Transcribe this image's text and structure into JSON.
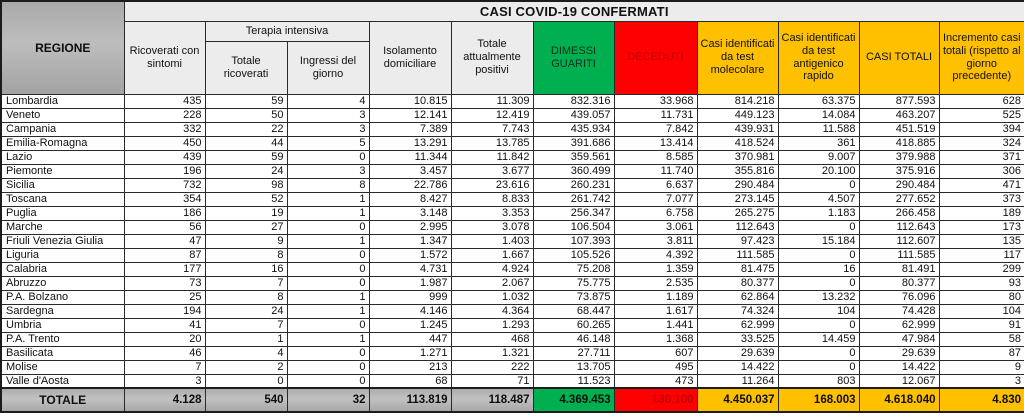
{
  "title": "CASI COVID-19 CONFERMATI",
  "colors": {
    "green": "#00b050",
    "red": "#ff0000",
    "amber": "#ffc000",
    "deceduti_text": "#c00000",
    "header_gray": "#b3b3b3"
  },
  "header": {
    "regione": "REGIONE",
    "ricoverati": "Ricoverati con sintomi",
    "terapia": "Terapia intensiva",
    "terapia_totale": "Totale ricoverati",
    "terapia_ingressi": "Ingressi del giorno",
    "isolamento": "Isolamento domiciliare",
    "positivi": "Totale attualmente positivi",
    "dimessi": "DIMESSI GUARITI",
    "deceduti": "DECEDUTI",
    "molecolare": "Casi identificati da test molecolare",
    "antigenico": "Casi identificati da test antigenico rapido",
    "casi_totali": "CASI TOTALI",
    "incremento": "Incremento casi totali (rispetto al giorno precedente)"
  },
  "rows": [
    [
      "Lombardia",
      "435",
      "59",
      "4",
      "10.815",
      "11.309",
      "832.316",
      "33.968",
      "814.218",
      "63.375",
      "877.593",
      "628"
    ],
    [
      "Veneto",
      "228",
      "50",
      "3",
      "12.141",
      "12.419",
      "439.057",
      "11.731",
      "449.123",
      "14.084",
      "463.207",
      "525"
    ],
    [
      "Campania",
      "332",
      "22",
      "3",
      "7.389",
      "7.743",
      "435.934",
      "7.842",
      "439.931",
      "11.588",
      "451.519",
      "394"
    ],
    [
      "Emilia-Romagna",
      "450",
      "44",
      "5",
      "13.291",
      "13.785",
      "391.686",
      "13.414",
      "418.524",
      "361",
      "418.885",
      "324"
    ],
    [
      "Lazio",
      "439",
      "59",
      "0",
      "11.344",
      "11.842",
      "359.561",
      "8.585",
      "370.981",
      "9.007",
      "379.988",
      "371"
    ],
    [
      "Piemonte",
      "196",
      "24",
      "3",
      "3.457",
      "3.677",
      "360.499",
      "11.740",
      "355.816",
      "20.100",
      "375.916",
      "306"
    ],
    [
      "Sicilia",
      "732",
      "98",
      "8",
      "22.786",
      "23.616",
      "260.231",
      "6.637",
      "290.484",
      "0",
      "290.484",
      "471"
    ],
    [
      "Toscana",
      "354",
      "52",
      "1",
      "8.427",
      "8.833",
      "261.742",
      "7.077",
      "273.145",
      "4.507",
      "277.652",
      "373"
    ],
    [
      "Puglia",
      "186",
      "19",
      "1",
      "3.148",
      "3.353",
      "256.347",
      "6.758",
      "265.275",
      "1.183",
      "266.458",
      "189"
    ],
    [
      "Marche",
      "56",
      "27",
      "0",
      "2.995",
      "3.078",
      "106.504",
      "3.061",
      "112.643",
      "0",
      "112.643",
      "173"
    ],
    [
      "Friuli Venezia Giulia",
      "47",
      "9",
      "1",
      "1.347",
      "1.403",
      "107.393",
      "3.811",
      "97.423",
      "15.184",
      "112.607",
      "135"
    ],
    [
      "Liguria",
      "87",
      "8",
      "0",
      "1.572",
      "1.667",
      "105.526",
      "4.392",
      "111.585",
      "0",
      "111.585",
      "117"
    ],
    [
      "Calabria",
      "177",
      "16",
      "0",
      "4.731",
      "4.924",
      "75.208",
      "1.359",
      "81.475",
      "16",
      "81.491",
      "299"
    ],
    [
      "Abruzzo",
      "73",
      "7",
      "0",
      "1.987",
      "2.067",
      "75.775",
      "2.535",
      "80.377",
      "0",
      "80.377",
      "93"
    ],
    [
      "P.A. Bolzano",
      "25",
      "8",
      "1",
      "999",
      "1.032",
      "73.875",
      "1.189",
      "62.864",
      "13.232",
      "76.096",
      "80"
    ],
    [
      "Sardegna",
      "194",
      "24",
      "1",
      "4.146",
      "4.364",
      "68.447",
      "1.617",
      "74.324",
      "104",
      "74.428",
      "104"
    ],
    [
      "Umbria",
      "41",
      "7",
      "0",
      "1.245",
      "1.293",
      "60.265",
      "1.441",
      "62.999",
      "0",
      "62.999",
      "91"
    ],
    [
      "P.A. Trento",
      "20",
      "1",
      "1",
      "447",
      "468",
      "46.148",
      "1.368",
      "33.525",
      "14.459",
      "47.984",
      "58"
    ],
    [
      "Basilicata",
      "46",
      "4",
      "0",
      "1.271",
      "1.321",
      "27.711",
      "607",
      "29.639",
      "0",
      "29.639",
      "87"
    ],
    [
      "Molise",
      "7",
      "2",
      "0",
      "213",
      "222",
      "13.705",
      "495",
      "14.422",
      "0",
      "14.422",
      "9"
    ],
    [
      "Valle d'Aosta",
      "3",
      "0",
      "0",
      "68",
      "71",
      "11.523",
      "473",
      "11.264",
      "803",
      "12.067",
      "3"
    ]
  ],
  "totale": {
    "label": "TOTALE",
    "values": [
      "4.128",
      "540",
      "32",
      "113.819",
      "118.487",
      "4.369.453",
      "130.100",
      "4.450.037",
      "168.003",
      "4.618.040",
      "4.830"
    ]
  }
}
